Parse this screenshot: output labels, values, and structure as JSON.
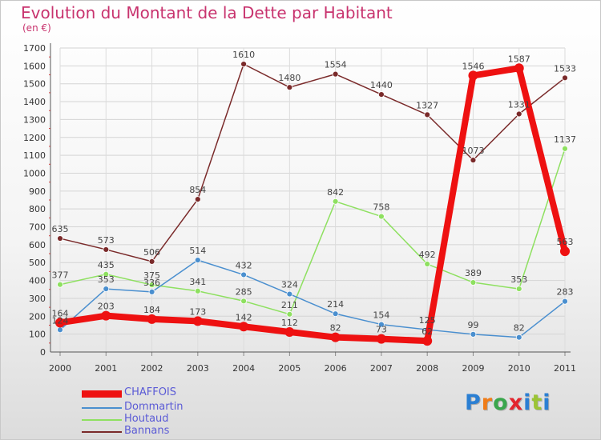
{
  "title": "Evolution du Montant de la Dette par Habitant",
  "subtitle": "(en €)",
  "logo": {
    "text": "Proxiti",
    "letter_colors": [
      "#2b7fd3",
      "#f07c18",
      "#3aa64c",
      "#e3262e",
      "#2b7fd3",
      "#9bc435",
      "#2b7fd3"
    ]
  },
  "chart_data": {
    "type": "line",
    "title": "Evolution du Montant de la Dette par Habitant",
    "subtitle": "(en €)",
    "xlabel": "",
    "ylabel": "",
    "x": [
      "2000",
      "2001",
      "2002",
      "2003",
      "2004",
      "2005",
      "2006",
      "2007",
      "2008",
      "2009",
      "2010",
      "2011"
    ],
    "ylim": [
      0,
      1700
    ],
    "yticks": [
      0,
      100,
      200,
      300,
      400,
      500,
      600,
      700,
      800,
      900,
      1000,
      1100,
      1200,
      1300,
      1400,
      1500,
      1600,
      1700
    ],
    "grid": true,
    "legend_position": "bottom-left",
    "series": [
      {
        "name": "CHAFFOIS",
        "color": "#ee1111",
        "width": 8,
        "values": [
          164,
          203,
          184,
          173,
          142,
          112,
          82,
          73,
          62,
          1546,
          1587,
          563
        ],
        "labels": [
          "164",
          "203",
          "184",
          "173",
          "142",
          "112",
          "82",
          "73",
          "62",
          "1546",
          "1587",
          "563"
        ]
      },
      {
        "name": "Dommartin",
        "color": "#4a8fcf",
        "width": 1.5,
        "values": [
          124,
          353,
          336,
          514,
          432,
          324,
          214,
          154,
          125,
          99,
          82,
          283
        ],
        "labels": [
          "124",
          "353",
          "336",
          "514",
          "432",
          "324",
          "214",
          "154",
          "125",
          "99",
          "82",
          "283"
        ]
      },
      {
        "name": "Houtaud",
        "color": "#8ee060",
        "width": 1.5,
        "values": [
          377,
          435,
          375,
          341,
          285,
          211,
          842,
          758,
          492,
          389,
          353,
          1137
        ],
        "labels": [
          "377",
          "435",
          "375",
          "341",
          "285",
          "211",
          "842",
          "758",
          "492",
          "389",
          "353",
          "1137"
        ]
      },
      {
        "name": "Bannans",
        "color": "#7a2a2a",
        "width": 1.5,
        "values": [
          635,
          573,
          506,
          854,
          1610,
          1480,
          1554,
          1440,
          1327,
          1073,
          1331,
          1533
        ],
        "labels": [
          "635",
          "573",
          "506",
          "854",
          "1610",
          "1480",
          "1554",
          "1440",
          "1327",
          "1073",
          "1331",
          "1533"
        ]
      }
    ]
  }
}
